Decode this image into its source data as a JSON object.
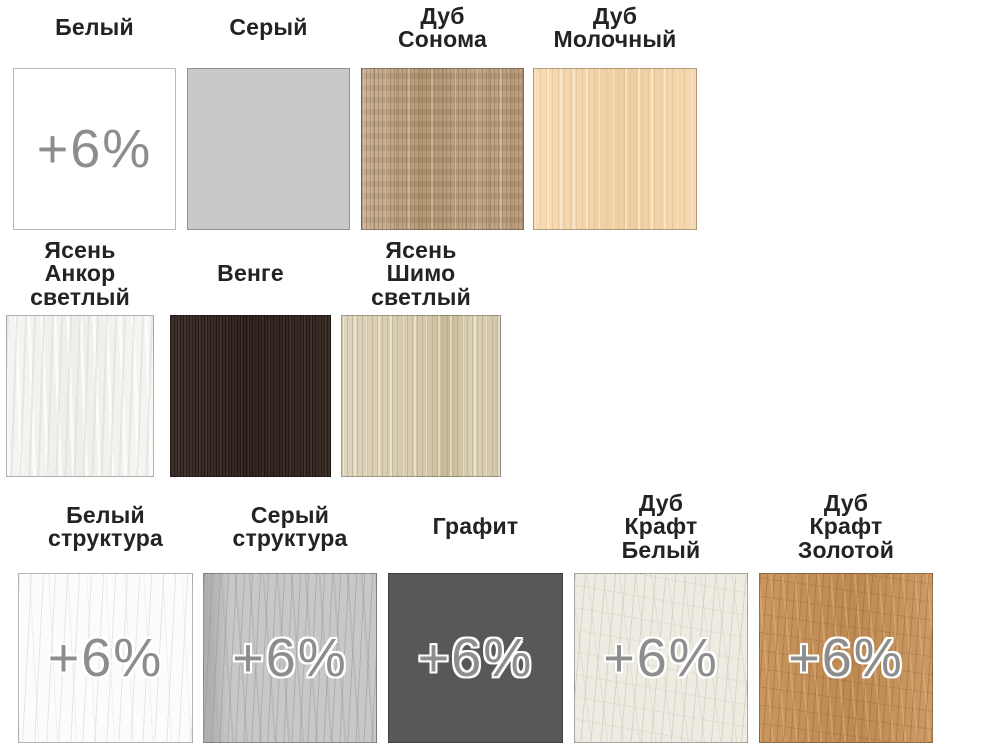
{
  "board": {
    "background": "#ffffff",
    "label_color": "#232323",
    "surcharge_color": "#8d8d8d",
    "rows": [
      {
        "cells": [
          {
            "label": "Белый",
            "surcharge": "+6%",
            "color": "#ffffff"
          },
          {
            "label": "Серый",
            "color": "#c9c9c9"
          },
          {
            "label": "Дуб\nСонома",
            "color": "#bca085"
          },
          {
            "label": "Дуб\nМолочный",
            "color": "#f3d7b0"
          }
        ]
      },
      {
        "cells": [
          {
            "label": "Ясень\nАнкор\nсветлый",
            "color": "#f5f4f2"
          },
          {
            "label": "Венге",
            "color": "#3b2c28"
          },
          {
            "label": "Ясень\nШимо\nсветлый",
            "color": "#dbd0b6"
          }
        ]
      },
      {
        "cells": [
          {
            "label": "Белый\nструктура",
            "surcharge": "+6%",
            "color": "#fcfcfb"
          },
          {
            "label": "Серый\nструктура",
            "surcharge": "+6%",
            "color": "#c8c8c8"
          },
          {
            "label": "Графит",
            "surcharge": "+6%",
            "color": "#585858"
          },
          {
            "label": "Дуб\nКрафт\nБелый",
            "surcharge": "+6%",
            "color": "#edebe2"
          },
          {
            "label": "Дуб\nКрафт\nЗолотой",
            "surcharge": "+6%",
            "color": "#c59260"
          }
        ]
      }
    ]
  }
}
